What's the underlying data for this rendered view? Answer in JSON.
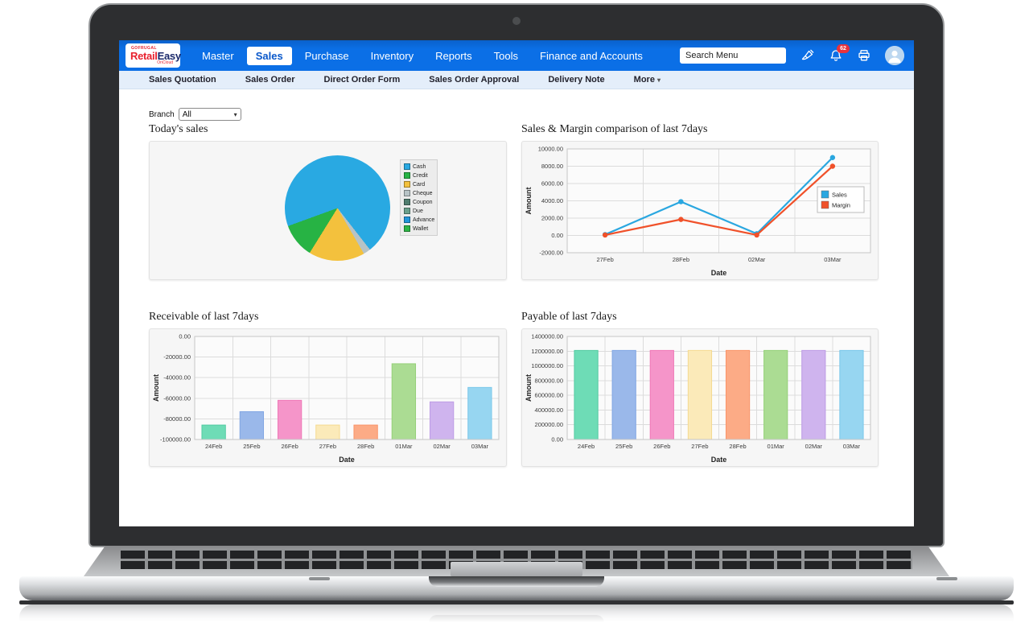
{
  "navbar": {
    "logo": {
      "top": "GOFRUGAL",
      "main_red": "Retail",
      "main_blue": "Easy",
      "sub": "OnCloud"
    },
    "items": [
      {
        "label": "Master",
        "active": false
      },
      {
        "label": "Sales",
        "active": true
      },
      {
        "label": "Purchase",
        "active": false
      },
      {
        "label": "Inventory",
        "active": false
      },
      {
        "label": "Reports",
        "active": false
      },
      {
        "label": "Tools",
        "active": false
      },
      {
        "label": "Finance and Accounts",
        "active": false
      }
    ],
    "search_placeholder": "Search Menu",
    "notification_count": "62"
  },
  "submenu": {
    "items": [
      "Sales Quotation",
      "Sales Order",
      "Direct Order Form",
      "Sales Order Approval",
      "Delivery Note"
    ],
    "more_label": "More"
  },
  "filters": {
    "branch_label": "Branch",
    "branch_value": "All"
  },
  "chart_data": [
    {
      "type": "pie",
      "title": "Today's sales",
      "labels": [
        "Cash",
        "Credit",
        "Card",
        "Cheque",
        "Coupon",
        "Due",
        "Advance",
        "Wallet"
      ],
      "values": [
        70,
        10.6,
        17.2,
        2.2,
        0,
        0,
        0,
        0
      ],
      "colors": [
        "#29a9e2",
        "#27b344",
        "#f3c13d",
        "#b7c3c6",
        "#4f7d6f",
        "#6aa08c",
        "#2196d9",
        "#2db546"
      ],
      "start_deg": 142,
      "legend_position": "right"
    },
    {
      "type": "line",
      "title": "Sales & Margin comparison of last 7days",
      "categories": [
        "27Feb",
        "28Feb",
        "02Mar",
        "03Mar"
      ],
      "series": [
        {
          "name": "Sales",
          "color": "#2aa7e0",
          "values": [
            100,
            3900,
            200,
            9000
          ]
        },
        {
          "name": "Margin",
          "color": "#f0512a",
          "values": [
            50,
            1850,
            50,
            8000
          ]
        }
      ],
      "xlabel": "Date",
      "ylabel": "Amount",
      "ylim": [
        -2000,
        10000
      ],
      "ytick_step": 2000,
      "grid": true,
      "legend_position": "right-inside"
    },
    {
      "type": "bar",
      "title": "Receivable of last 7days",
      "categories": [
        "24Feb",
        "25Feb",
        "26Feb",
        "27Feb",
        "28Feb",
        "01Mar",
        "02Mar",
        "03Mar"
      ],
      "values": [
        -86000,
        -73000,
        -62000,
        -86000,
        -86000,
        -26500,
        -63500,
        -49500
      ],
      "bar_colors": [
        "#6edcb6",
        "#9ab8ea",
        "#f595c9",
        "#fbeab9",
        "#fcab86",
        "#abdc93",
        "#cfb4ee",
        "#97d6f1"
      ],
      "bar_borders": [
        "#53cba2",
        "#81a6e3",
        "#ef79b7",
        "#f5da90",
        "#fa9469",
        "#95d079",
        "#bd9ce5",
        "#7ac7ea"
      ],
      "xlabel": "Date",
      "ylabel": "Amount",
      "ylim": [
        -100000,
        0
      ],
      "ytick_step": 20000,
      "grid": true
    },
    {
      "type": "bar",
      "title": "Payable of last 7days",
      "categories": [
        "24Feb",
        "25Feb",
        "26Feb",
        "27Feb",
        "28Feb",
        "01Mar",
        "02Mar",
        "03Mar"
      ],
      "values": [
        1210000,
        1210000,
        1210000,
        1210000,
        1210000,
        1210000,
        1210000,
        1210000
      ],
      "bar_colors": [
        "#6edcb6",
        "#9ab8ea",
        "#f595c9",
        "#fbeab9",
        "#fcab86",
        "#abdc93",
        "#cfb4ee",
        "#97d6f1"
      ],
      "bar_borders": [
        "#53cba2",
        "#81a6e3",
        "#ef79b7",
        "#f5da90",
        "#fa9469",
        "#95d079",
        "#bd9ce5",
        "#7ac7ea"
      ],
      "xlabel": "Date",
      "ylabel": "Amount",
      "ylim": [
        0,
        1400000
      ],
      "ytick_step": 200000,
      "grid": true
    }
  ]
}
